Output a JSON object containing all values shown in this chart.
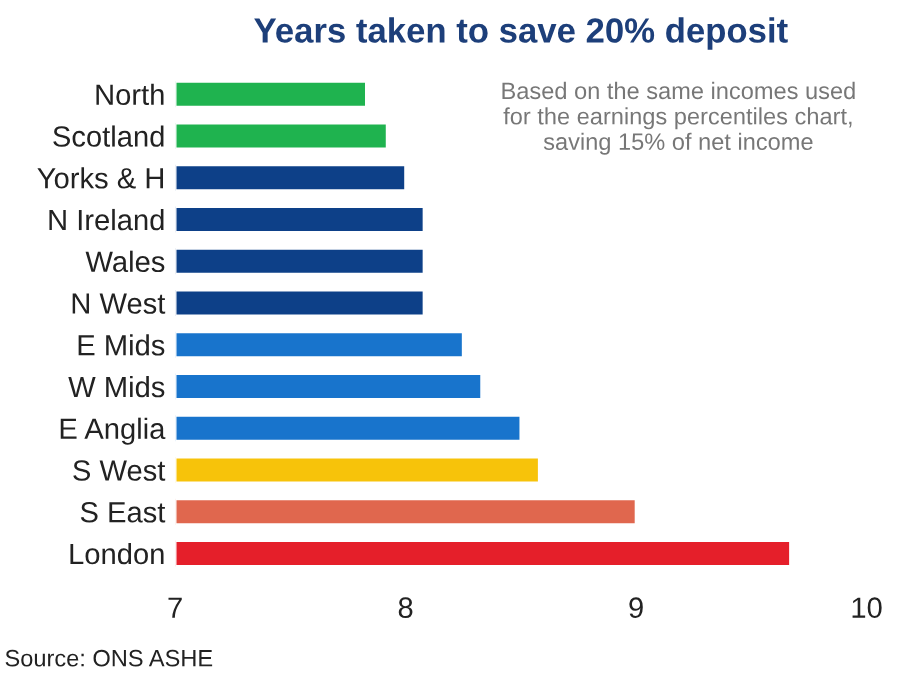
{
  "chart_data": {
    "type": "bar",
    "orientation": "horizontal",
    "title": "Years taken to save 20% deposit",
    "categories": [
      "North",
      "Scotland",
      "Yorks & H",
      "N Ireland",
      "Wales",
      "N West",
      "E Mids",
      "W Mids",
      "E Anglia",
      "S West",
      "S East",
      "London"
    ],
    "values": [
      7.83,
      7.92,
      8.0,
      8.08,
      8.08,
      8.08,
      8.25,
      8.33,
      8.5,
      8.58,
      9.0,
      9.67
    ],
    "colors": [
      "#1fb34f",
      "#1fb34f",
      "#0d4088",
      "#0d4088",
      "#0d4088",
      "#0d4088",
      "#1874cc",
      "#1874cc",
      "#1874cc",
      "#f7c30a",
      "#e0674e",
      "#e51f2a"
    ],
    "xlim": [
      7,
      10
    ],
    "xticks": [
      7,
      8,
      9,
      10
    ],
    "grid": false,
    "annotations": [
      "Based on the same incomes used\nfor the earnings percentiles chart,\nsaving 15% of net income",
      "Source: ONS ASHE"
    ]
  }
}
